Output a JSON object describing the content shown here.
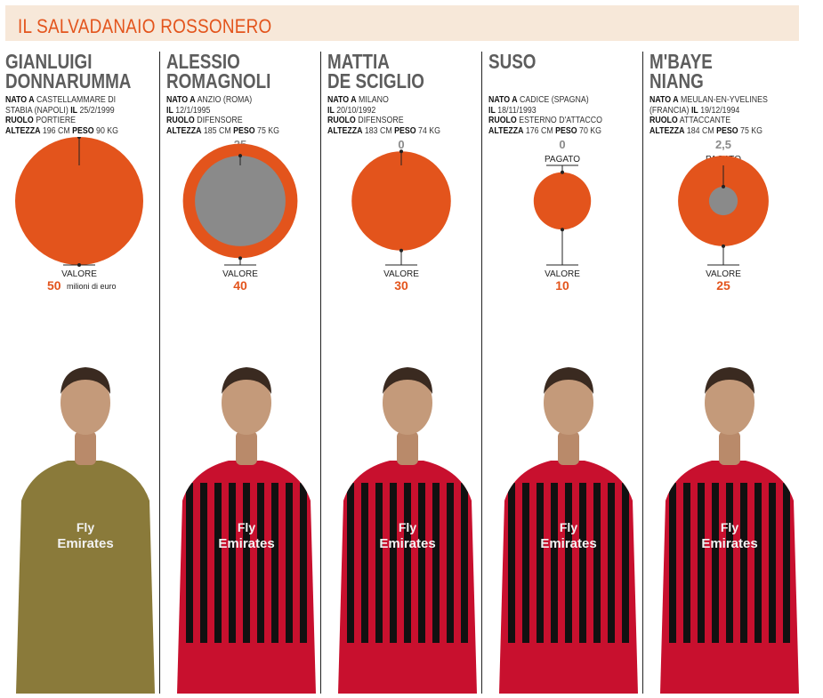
{
  "header": {
    "title": "IL SALVADANAIO ROSSONERO"
  },
  "labels": {
    "nato": "NATO A",
    "il": "IL",
    "ruolo": "RUOLO",
    "altezza": "ALTEZZA",
    "peso": "PESO",
    "pagato": "PAGATO",
    "valore": "VALORE",
    "unit": "milioni di euro"
  },
  "colors": {
    "accent": "#e3541c",
    "paid": "#8a8a8a",
    "header_bg": "#f7e8d9"
  },
  "players": [
    {
      "name_line1": "GIANLUIGI",
      "name_line2": "DONNARUMMA",
      "bio1": "CASTELLAMMARE DI",
      "bio2": "STABIA (NAPOLI)",
      "birth": "25/2/1999",
      "ruolo": "PORTIERE",
      "altezza": "196 CM",
      "peso": "90 KG",
      "pagato": "0",
      "valore": "50"
    },
    {
      "name_line1": "ALESSIO",
      "name_line2": "ROMAGNOLI",
      "bio1": "ANZIO (ROMA)",
      "bio2": "",
      "birth": "12/1/1995",
      "ruolo": "DIFENSORE",
      "altezza": "185 CM",
      "peso": "75 KG",
      "pagato": "25",
      "valore": "40"
    },
    {
      "name_line1": "MATTIA",
      "name_line2": "DE SCIGLIO",
      "bio1": "MILANO",
      "bio2": "",
      "birth": "20/10/1992",
      "ruolo": "DIFENSORE",
      "altezza": "183 CM",
      "peso": "74 KG",
      "pagato": "0",
      "valore": "30"
    },
    {
      "name_line1": "SUSO",
      "name_line2": "",
      "bio1": "CADICE (SPAGNA)",
      "bio2": "",
      "birth": "18/11/1993",
      "ruolo": "ESTERNO D'ATTACCO",
      "altezza": "176 CM",
      "peso": "70 KG",
      "pagato": "0",
      "valore": "10"
    },
    {
      "name_line1": "M'BAYE",
      "name_line2": "NIANG",
      "bio1": "MEULAN-EN-YVELINES",
      "bio2": "(FRANCIA)",
      "birth": "19/12/1994",
      "ruolo": "ATTACCANTE",
      "altezza": "184 CM",
      "peso": "75 KG",
      "pagato": "2,5",
      "valore": "25"
    }
  ],
  "chart_data": {
    "type": "bubble",
    "unit": "milioni di euro",
    "categories": [
      "GIANLUIGI DONNARUMMA",
      "ALESSIO ROMAGNOLI",
      "MATTIA DE SCIGLIO",
      "SUSO",
      "M'BAYE NIANG"
    ],
    "series": [
      {
        "name": "PAGATO",
        "values": [
          0,
          25,
          0,
          0,
          2.5
        ]
      },
      {
        "name": "VALORE",
        "values": [
          50,
          40,
          30,
          10,
          25
        ]
      }
    ]
  }
}
